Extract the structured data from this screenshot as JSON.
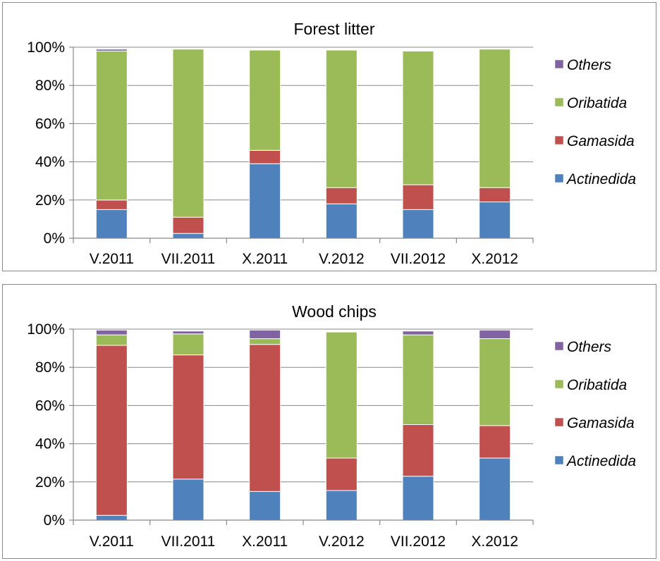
{
  "chart_data": [
    {
      "type": "bar",
      "stacked": true,
      "percent": true,
      "title": "Forest litter",
      "categories": [
        "V.2011",
        "VII.2011",
        "X.2011",
        "V.2012",
        "VII.2012",
        "X.2012"
      ],
      "ylim": [
        0,
        100
      ],
      "yticks": [
        "0%",
        "20%",
        "40%",
        "60%",
        "80%",
        "100%"
      ],
      "grid": true,
      "legend": "right",
      "series": [
        {
          "name": "Actinedida",
          "color": "#4f81bd",
          "values": [
            15,
            2.5,
            39,
            18,
            15,
            19
          ]
        },
        {
          "name": "Gamasida",
          "color": "#c0504d",
          "values": [
            5,
            8.5,
            7,
            8.5,
            13,
            7.5
          ]
        },
        {
          "name": "Oribatida",
          "color": "#9bbb59",
          "values": [
            78,
            88,
            52.5,
            72,
            70,
            72.5
          ]
        },
        {
          "name": "Others",
          "color": "#8064a2",
          "values": [
            1,
            0,
            0,
            0,
            0,
            0
          ]
        }
      ]
    },
    {
      "type": "bar",
      "stacked": true,
      "percent": true,
      "title": "Wood chips",
      "categories": [
        "V.2011",
        "VII.2011",
        "X.2011",
        "V.2012",
        "VII.2012",
        "X.2012"
      ],
      "ylim": [
        0,
        100
      ],
      "yticks": [
        "0%",
        "20%",
        "40%",
        "60%",
        "80%",
        "100%"
      ],
      "grid": true,
      "legend": "right",
      "series": [
        {
          "name": "Actinedida",
          "color": "#4f81bd",
          "values": [
            2.5,
            21.5,
            15,
            15.5,
            23,
            32.5
          ]
        },
        {
          "name": "Gamasida",
          "color": "#c0504d",
          "values": [
            89,
            65,
            77,
            17,
            27,
            17
          ]
        },
        {
          "name": "Oribatida",
          "color": "#9bbb59",
          "values": [
            5.5,
            11,
            3,
            66,
            47,
            45.5
          ]
        },
        {
          "name": "Others",
          "color": "#8064a2",
          "values": [
            2.5,
            1.5,
            4.5,
            0,
            2,
            4.5
          ]
        }
      ]
    }
  ]
}
